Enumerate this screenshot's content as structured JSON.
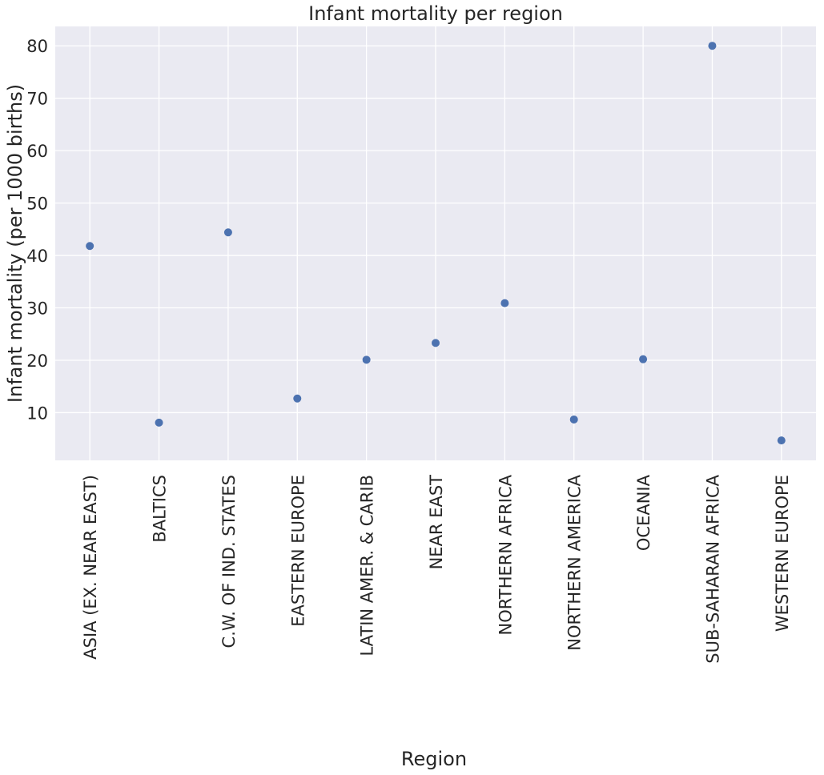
{
  "chart_data": {
    "type": "scatter",
    "title": "Infant mortality per region",
    "xlabel": "Region",
    "ylabel": "Infant mortality (per 1000 births)",
    "categories": [
      "ASIA (EX. NEAR EAST)",
      "BALTICS",
      "C.W. OF IND. STATES",
      "EASTERN EUROPE",
      "LATIN AMER. & CARIB",
      "NEAR EAST",
      "NORTHERN AFRICA",
      "NORTHERN AMERICA",
      "OCEANIA",
      "SUB-SAHARAN AFRICA",
      "WESTERN EUROPE"
    ],
    "values": [
      41.8,
      8.1,
      44.4,
      12.7,
      20.1,
      23.3,
      30.9,
      8.7,
      20.2,
      80.0,
      4.7
    ],
    "yticks": [
      10,
      20,
      30,
      40,
      50,
      60,
      70,
      80
    ],
    "ylim": [
      0.9,
      83.7
    ],
    "grid": true,
    "colors": {
      "background": "#eaeaf2",
      "grid": "#ffffff",
      "marker": "#4c72b0"
    }
  }
}
